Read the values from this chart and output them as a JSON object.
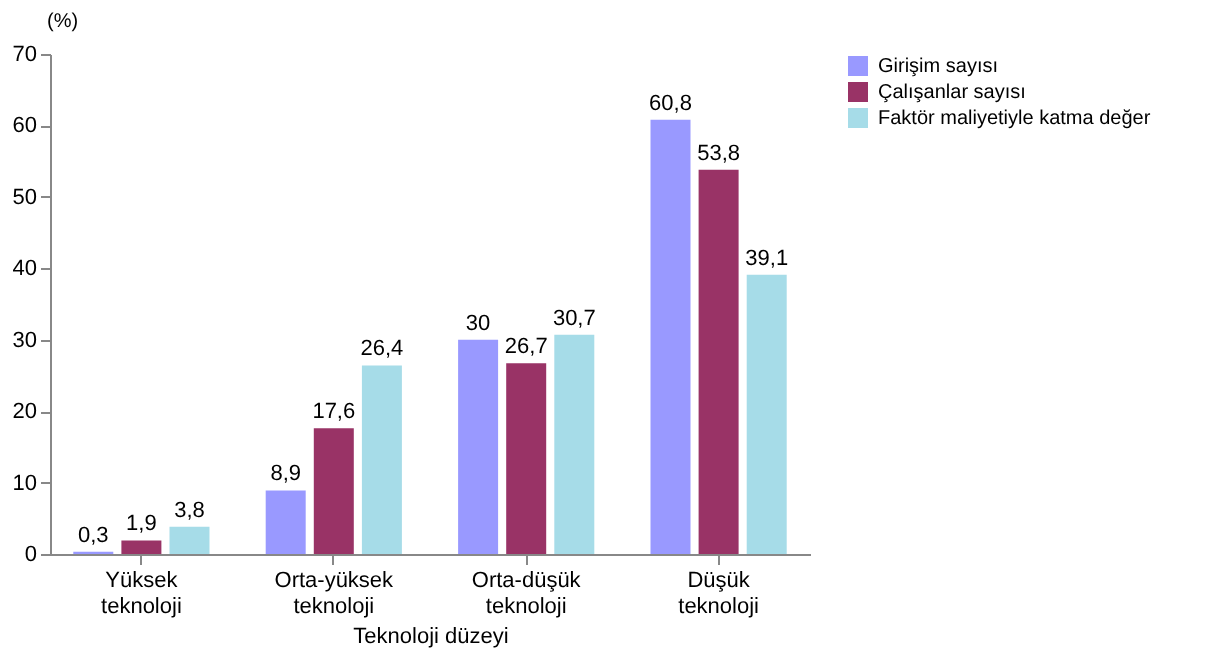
{
  "chart_data": {
    "type": "bar",
    "xlabel": "Teknoloji düzeyi",
    "ylabel": "(%)",
    "categories": [
      "Yüksek teknoloji",
      "Orta-yüksek teknoloji",
      "Orta-düşük teknoloji",
      "Düşük teknoloji"
    ],
    "series": [
      {
        "name": "Girişim sayısı",
        "color": "#9999ff",
        "values": [
          0.3,
          8.9,
          30,
          60.8
        ],
        "value_labels": [
          "0,3",
          "8,9",
          "30",
          "60,8"
        ]
      },
      {
        "name": "Çalışanlar sayısı",
        "color": "#993366",
        "values": [
          1.9,
          17.6,
          26.7,
          53.8
        ],
        "value_labels": [
          "1,9",
          "17,6",
          "26,7",
          "53,8"
        ]
      },
      {
        "name": "Faktör maliyetiyle katma değer",
        "color": "#a6dce8",
        "values": [
          3.8,
          26.4,
          30.7,
          39.1
        ],
        "value_labels": [
          "3,8",
          "26,4",
          "30,7",
          "39,1"
        ]
      }
    ],
    "ylim": [
      0,
      70
    ],
    "yticks": [
      0,
      10,
      20,
      30,
      40,
      50,
      60,
      70
    ],
    "grid": false,
    "legend": "right"
  }
}
